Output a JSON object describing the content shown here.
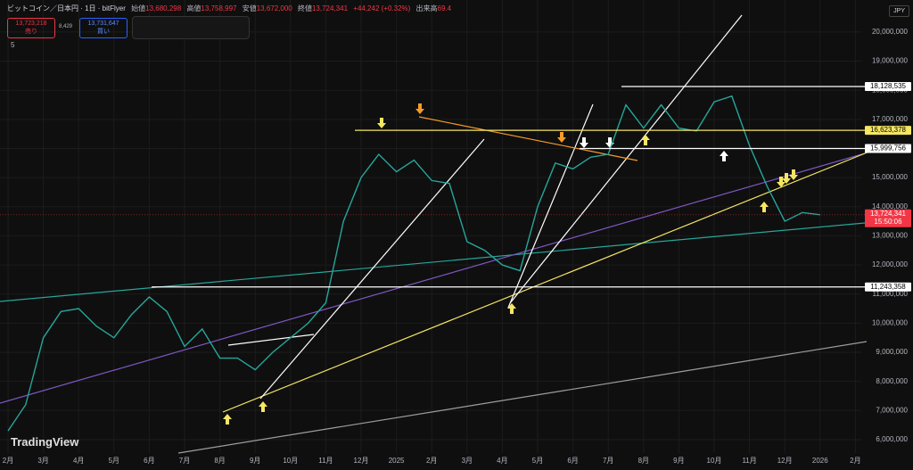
{
  "header": {
    "symbol": "ビットコイン／日本円 · 1日 · bitFlyer",
    "ohlc": [
      {
        "label": "始値",
        "value": "13,680,298"
      },
      {
        "label": "高値",
        "value": "13,758,997"
      },
      {
        "label": "安値",
        "value": "13,672,000"
      },
      {
        "label": "終値",
        "value": "13,724,341"
      }
    ],
    "change": "+44,242 (+0.32%)",
    "volume_label": "出来高",
    "volume": "69.4",
    "sell_price": "13,723,218",
    "sell_label": "売り",
    "spread": "8,429",
    "buy_price": "13,731,647",
    "buy_label": "買い",
    "indicator_count": "5",
    "currency": "JPY",
    "brand": "TradingView"
  },
  "chart_data": {
    "type": "line",
    "categories": [
      "2月",
      null,
      "3月",
      null,
      "4月",
      null,
      "5月",
      null,
      "6月",
      null,
      "7月",
      null,
      "8月",
      null,
      "9月",
      null,
      "10月",
      null,
      "11月",
      null,
      "12月",
      null,
      "2025",
      null,
      "2月",
      null,
      "3月",
      null,
      "4月",
      null,
      "5月",
      null,
      "6月",
      null,
      "7月",
      null,
      "8月",
      null,
      "9月",
      null,
      "10月",
      null,
      "11月",
      null,
      "12月",
      null,
      "2026",
      null,
      "2月"
    ],
    "series": [
      {
        "name": "BTC/JPY",
        "color": "#26a69a",
        "values": [
          6300000,
          7200000,
          9500000,
          10400000,
          10500000,
          9900000,
          9500000,
          10300000,
          10900000,
          10400000,
          9200000,
          9800000,
          8800000,
          8800000,
          8400000,
          9000000,
          9500000,
          10000000,
          10700000,
          13500000,
          15000000,
          15800000,
          15200000,
          15600000,
          14900000,
          14800000,
          12800000,
          12500000,
          12000000,
          11800000,
          14000000,
          15500000,
          15300000,
          15700000,
          15800000,
          17500000,
          16700000,
          17500000,
          16700000,
          16600000,
          17600000,
          17800000,
          16100000,
          14700000,
          13500000,
          13800000,
          13724341,
          null,
          null
        ]
      }
    ],
    "ylim": [
      5600000,
      21100000
    ],
    "yticks": [
      {
        "value": 6000000,
        "label": "6,000,000"
      },
      {
        "value": 7000000,
        "label": "7,000,000"
      },
      {
        "value": 8000000,
        "label": "8,000,000"
      },
      {
        "value": 9000000,
        "label": "9,000,000"
      },
      {
        "value": 10000000,
        "label": "10,000,000"
      },
      {
        "value": 11000000,
        "label": "11,000,000"
      },
      {
        "value": 12000000,
        "label": "12,000,000"
      },
      {
        "value": 13000000,
        "label": "13,000,000"
      },
      {
        "value": 14000000,
        "label": "14,000,000"
      },
      {
        "value": 15000000,
        "label": "15,000,000"
      },
      {
        "value": 16000000,
        "label": "16,000,000"
      },
      {
        "value": 17000000,
        "label": "17,000,000"
      },
      {
        "value": 18000000,
        "label": "18,000,000"
      },
      {
        "value": 19000000,
        "label": "19,000,000"
      },
      {
        "value": 20000000,
        "label": "20,000,000"
      }
    ],
    "grid": true,
    "levels": [
      {
        "value": 18128535,
        "label": "18,128,535",
        "color": "#ffffff"
      },
      {
        "value": 16623378,
        "label": "16,623,378",
        "color": "#f5e663"
      },
      {
        "value": 15999756,
        "label": "15,999,756",
        "color": "#ffffff"
      },
      {
        "value": 11243358,
        "label": "11,243,358",
        "color": "#ffffff"
      }
    ],
    "last": {
      "value": 13724341,
      "label": "13,724,341",
      "time": "15:50:06",
      "color": "#f23645"
    }
  }
}
